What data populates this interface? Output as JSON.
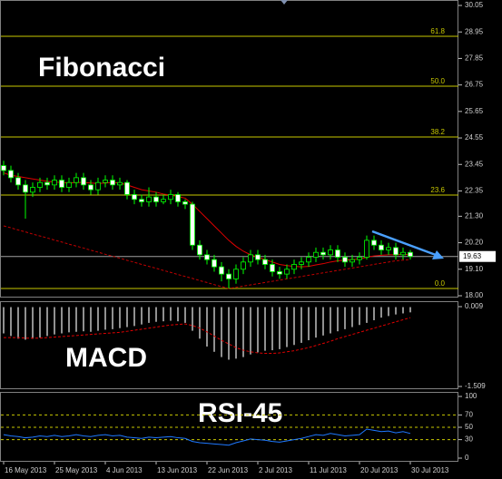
{
  "chart_data": [
    {
      "type": "candlestick",
      "title": "Fibonacci",
      "open": [
        23.4,
        23.2,
        22.9,
        22.6,
        22.3,
        22.5,
        22.7,
        22.6,
        22.8,
        22.5,
        22.7,
        22.9,
        22.6,
        22.4,
        22.7,
        22.8,
        22.6,
        22.7,
        22.2,
        22.0,
        21.9,
        22.1,
        21.9,
        22.0,
        22.2,
        21.9,
        21.8,
        20.1,
        19.7,
        19.5,
        19.2,
        18.9,
        18.7,
        19.1,
        19.4,
        19.7,
        19.5,
        19.3,
        19.0,
        18.9,
        19.1,
        19.3,
        19.4,
        19.6,
        19.8,
        19.7,
        19.9,
        19.6,
        19.4,
        19.5,
        19.6,
        20.3,
        20.1,
        19.9,
        20.0,
        19.7,
        19.8
      ],
      "high": [
        23.6,
        23.4,
        23.1,
        22.8,
        22.7,
        22.9,
        22.9,
        23.0,
        23.0,
        22.9,
        23.1,
        23.1,
        22.8,
        22.9,
        23.0,
        23.0,
        22.9,
        22.8,
        22.4,
        22.2,
        22.5,
        22.3,
        22.2,
        22.4,
        22.3,
        22.0,
        21.9,
        20.3,
        19.9,
        19.7,
        19.4,
        19.1,
        19.3,
        19.6,
        19.9,
        19.9,
        19.7,
        19.5,
        19.2,
        19.3,
        19.5,
        19.6,
        19.8,
        20.0,
        20.0,
        20.1,
        20.1,
        19.8,
        19.7,
        19.8,
        20.5,
        20.5,
        20.3,
        20.2,
        20.2,
        20.0,
        19.9
      ],
      "low": [
        23.0,
        22.7,
        22.4,
        21.2,
        22.1,
        22.3,
        22.4,
        22.4,
        22.3,
        22.3,
        22.5,
        22.4,
        22.2,
        22.2,
        22.5,
        22.4,
        22.4,
        22.0,
        21.8,
        21.7,
        21.7,
        21.7,
        21.8,
        21.8,
        21.7,
        21.6,
        19.9,
        19.5,
        19.3,
        19.0,
        18.6,
        18.3,
        18.5,
        18.9,
        19.2,
        19.3,
        19.1,
        18.8,
        18.7,
        18.7,
        18.9,
        19.1,
        19.2,
        19.4,
        19.5,
        19.5,
        19.4,
        19.2,
        19.2,
        19.3,
        19.5,
        19.9,
        19.7,
        19.7,
        19.5,
        19.5,
        19.5
      ],
      "close": [
        23.2,
        22.9,
        22.6,
        22.3,
        22.5,
        22.7,
        22.6,
        22.8,
        22.5,
        22.7,
        22.9,
        22.6,
        22.4,
        22.7,
        22.8,
        22.6,
        22.7,
        22.2,
        22.0,
        21.9,
        22.1,
        21.9,
        22.0,
        22.2,
        21.9,
        21.8,
        20.1,
        19.7,
        19.5,
        19.2,
        18.9,
        18.7,
        19.1,
        19.4,
        19.7,
        19.5,
        19.3,
        19.0,
        18.9,
        19.1,
        19.3,
        19.4,
        19.6,
        19.8,
        19.7,
        19.9,
        19.6,
        19.4,
        19.5,
        19.6,
        20.3,
        20.1,
        19.9,
        20.0,
        19.7,
        19.8,
        19.63
      ],
      "up_color": "#000000",
      "down_color": "#ffffff",
      "candle_color": "#00ff00",
      "ma_lines": [
        {
          "color": "#e00000",
          "dashed": false,
          "values": [
            23.1,
            23.0,
            22.95,
            22.9,
            22.85,
            22.8,
            22.75,
            22.72,
            22.7,
            22.68,
            22.7,
            22.7,
            22.68,
            22.66,
            22.68,
            22.7,
            22.68,
            22.6,
            22.5,
            22.4,
            22.35,
            22.3,
            22.22,
            22.18,
            22.12,
            22.05,
            21.8,
            21.5,
            21.2,
            20.9,
            20.6,
            20.3,
            20.05,
            19.85,
            19.7,
            19.6,
            19.5,
            19.4,
            19.3,
            19.25,
            19.22,
            19.2,
            19.22,
            19.28,
            19.33,
            19.4,
            19.45,
            19.48,
            19.5,
            19.52,
            19.6,
            19.65,
            19.68,
            19.7,
            19.7,
            19.72,
            19.7
          ]
        },
        {
          "color": "#c00000",
          "dashed": true,
          "values": [
            20.9,
            20.82,
            20.73,
            20.65,
            20.56,
            20.48,
            20.4,
            20.31,
            20.23,
            20.14,
            20.06,
            19.98,
            19.89,
            19.81,
            19.72,
            19.64,
            19.56,
            19.47,
            19.39,
            19.3,
            19.22,
            19.14,
            19.05,
            18.97,
            18.88,
            18.8,
            18.72,
            18.63,
            18.55,
            18.46,
            18.38,
            18.3,
            18.35,
            18.4,
            18.45,
            18.5,
            18.55,
            18.6,
            18.65,
            18.7,
            18.75,
            18.8,
            18.85,
            18.9,
            18.95,
            19.0,
            19.05,
            19.1,
            19.15,
            19.2,
            19.25,
            19.3,
            19.35,
            19.4,
            19.45,
            19.48,
            19.5
          ]
        }
      ],
      "levels": [
        {
          "value": 28.77,
          "label": "61.8"
        },
        {
          "value": 26.7,
          "label": "50.0"
        },
        {
          "value": 24.59,
          "label": "38.2"
        },
        {
          "value": 22.18,
          "label": "23.6"
        },
        {
          "value": 18.3,
          "label": "0.0"
        }
      ],
      "level_color": "#c8c800",
      "last_price": 19.63,
      "ylim": [
        18.0,
        30.05
      ],
      "yticks": [
        30.05,
        28.95,
        27.85,
        26.75,
        25.65,
        24.55,
        23.45,
        22.35,
        {
          "value": 21.3,
          "label": "21.30"
        },
        {
          "value": 20.2,
          "label": "20.20"
        },
        {
          "value": 19.1,
          "label": "19.10"
        },
        {
          "value": 18.0,
          "label": "18.00"
        }
      ],
      "xticks": [
        {
          "value": 0,
          "label": "16 May 2013"
        },
        {
          "value": 7,
          "label": "25 May 2013"
        },
        {
          "value": 14,
          "label": "4 Jun 2013"
        },
        {
          "value": 21,
          "label": "13 Jun 2013"
        },
        {
          "value": 28,
          "label": "22 Jun 2013"
        },
        {
          "value": 35,
          "label": "2 Jul 2013"
        },
        {
          "value": 42,
          "label": "11 Jul 2013"
        },
        {
          "value": 49,
          "label": "20 Jul 2013"
        },
        {
          "value": 56,
          "label": "30 Jul 2013"
        }
      ]
    },
    {
      "type": "bar",
      "title": "MACD",
      "color": "#c0c0c0",
      "values": [
        -0.5,
        -0.55,
        -0.6,
        -0.62,
        -0.6,
        -0.58,
        -0.55,
        -0.52,
        -0.5,
        -0.48,
        -0.47,
        -0.46,
        -0.47,
        -0.45,
        -0.43,
        -0.42,
        -0.4,
        -0.38,
        -0.36,
        -0.33,
        -0.3,
        -0.28,
        -0.27,
        -0.26,
        -0.27,
        -0.3,
        -0.45,
        -0.6,
        -0.75,
        -0.85,
        -0.95,
        -1.0,
        -0.98,
        -0.95,
        -0.9,
        -0.86,
        -0.83,
        -0.82,
        -0.8,
        -0.76,
        -0.72,
        -0.68,
        -0.63,
        -0.58,
        -0.54,
        -0.5,
        -0.46,
        -0.42,
        -0.38,
        -0.34,
        -0.3,
        -0.25,
        -0.2,
        -0.17,
        -0.14,
        -0.12,
        -0.1
      ],
      "signal": {
        "color": "#e00000",
        "values": [
          -0.58,
          -0.58,
          -0.58,
          -0.59,
          -0.59,
          -0.59,
          -0.58,
          -0.57,
          -0.56,
          -0.55,
          -0.54,
          -0.53,
          -0.52,
          -0.51,
          -0.5,
          -0.49,
          -0.48,
          -0.46,
          -0.44,
          -0.42,
          -0.4,
          -0.38,
          -0.36,
          -0.34,
          -0.33,
          -0.32,
          -0.35,
          -0.4,
          -0.47,
          -0.55,
          -0.63,
          -0.7,
          -0.77,
          -0.82,
          -0.85,
          -0.87,
          -0.88,
          -0.88,
          -0.87,
          -0.85,
          -0.83,
          -0.8,
          -0.77,
          -0.73,
          -0.69,
          -0.65,
          -0.6,
          -0.56,
          -0.52,
          -0.48,
          -0.44,
          -0.4,
          -0.36,
          -0.32,
          -0.28,
          -0.24,
          -0.2
        ]
      },
      "ylim": [
        -1.509,
        0.009
      ],
      "yticks": [
        0.009,
        -1.509
      ]
    },
    {
      "type": "line",
      "title": "RSI-45",
      "color": "#1e78ff",
      "values": [
        38,
        36,
        35,
        33,
        34,
        36,
        35,
        37,
        35,
        36,
        38,
        36,
        35,
        37,
        38,
        36,
        37,
        34,
        33,
        32,
        34,
        33,
        34,
        35,
        33,
        32,
        27,
        25,
        24,
        23,
        22,
        21,
        25,
        28,
        31,
        30,
        29,
        27,
        26,
        28,
        30,
        32,
        35,
        38,
        37,
        40,
        38,
        36,
        37,
        38,
        47,
        45,
        43,
        44,
        41,
        43,
        40
      ],
      "ylim": [
        0,
        100
      ],
      "yticks": [
        100,
        70,
        50,
        30,
        0
      ],
      "level_lines": [
        70,
        50,
        30
      ],
      "level_color": "#c8c800"
    }
  ]
}
